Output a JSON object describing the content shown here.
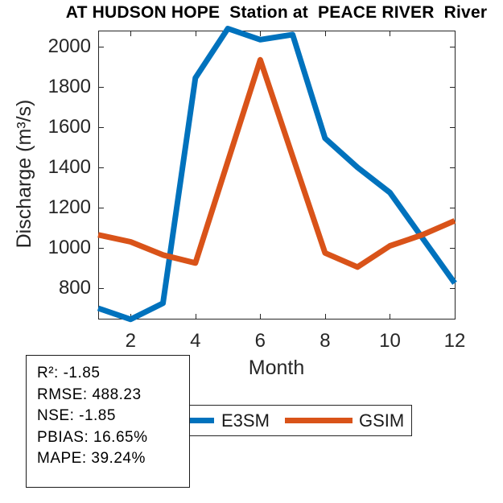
{
  "title": "AT HUDSON HOPE  Station at  PEACE RIVER  River",
  "chart_data": {
    "type": "line",
    "title": "AT HUDSON HOPE  Station at  PEACE RIVER  River",
    "xlabel": "Month",
    "ylabel": "Discharge (m³/s)",
    "x": [
      1,
      2,
      3,
      4,
      5,
      6,
      7,
      8,
      9,
      10,
      11,
      12
    ],
    "series": [
      {
        "name": "E3SM",
        "color": "#0072BD",
        "values": [
          700,
          645,
          725,
          1845,
          2090,
          2035,
          2060,
          1545,
          1400,
          1275,
          1050,
          825
        ]
      },
      {
        "name": "GSIM",
        "color": "#D95319",
        "values": [
          1065,
          1030,
          965,
          925,
          1430,
          1935,
          1455,
          975,
          905,
          1010,
          1065,
          1135
        ]
      }
    ],
    "xticks": [
      2,
      4,
      6,
      8,
      10,
      12
    ],
    "yticks": [
      800,
      1000,
      1200,
      1400,
      1600,
      1800,
      2000
    ],
    "xlim": [
      1,
      12
    ],
    "ylim": [
      650,
      2080
    ],
    "grid": false,
    "legend_position": "below-axis"
  },
  "legend": {
    "entries": [
      {
        "label": "E3SM",
        "color": "#0072BD"
      },
      {
        "label": "GSIM",
        "color": "#D95319"
      }
    ]
  },
  "stats_box": {
    "lines": [
      "R²: -1.85",
      "RMSE: 488.23",
      "NSE: -1.85",
      "PBIAS: 16.65%",
      "MAPE: 39.24%"
    ]
  }
}
